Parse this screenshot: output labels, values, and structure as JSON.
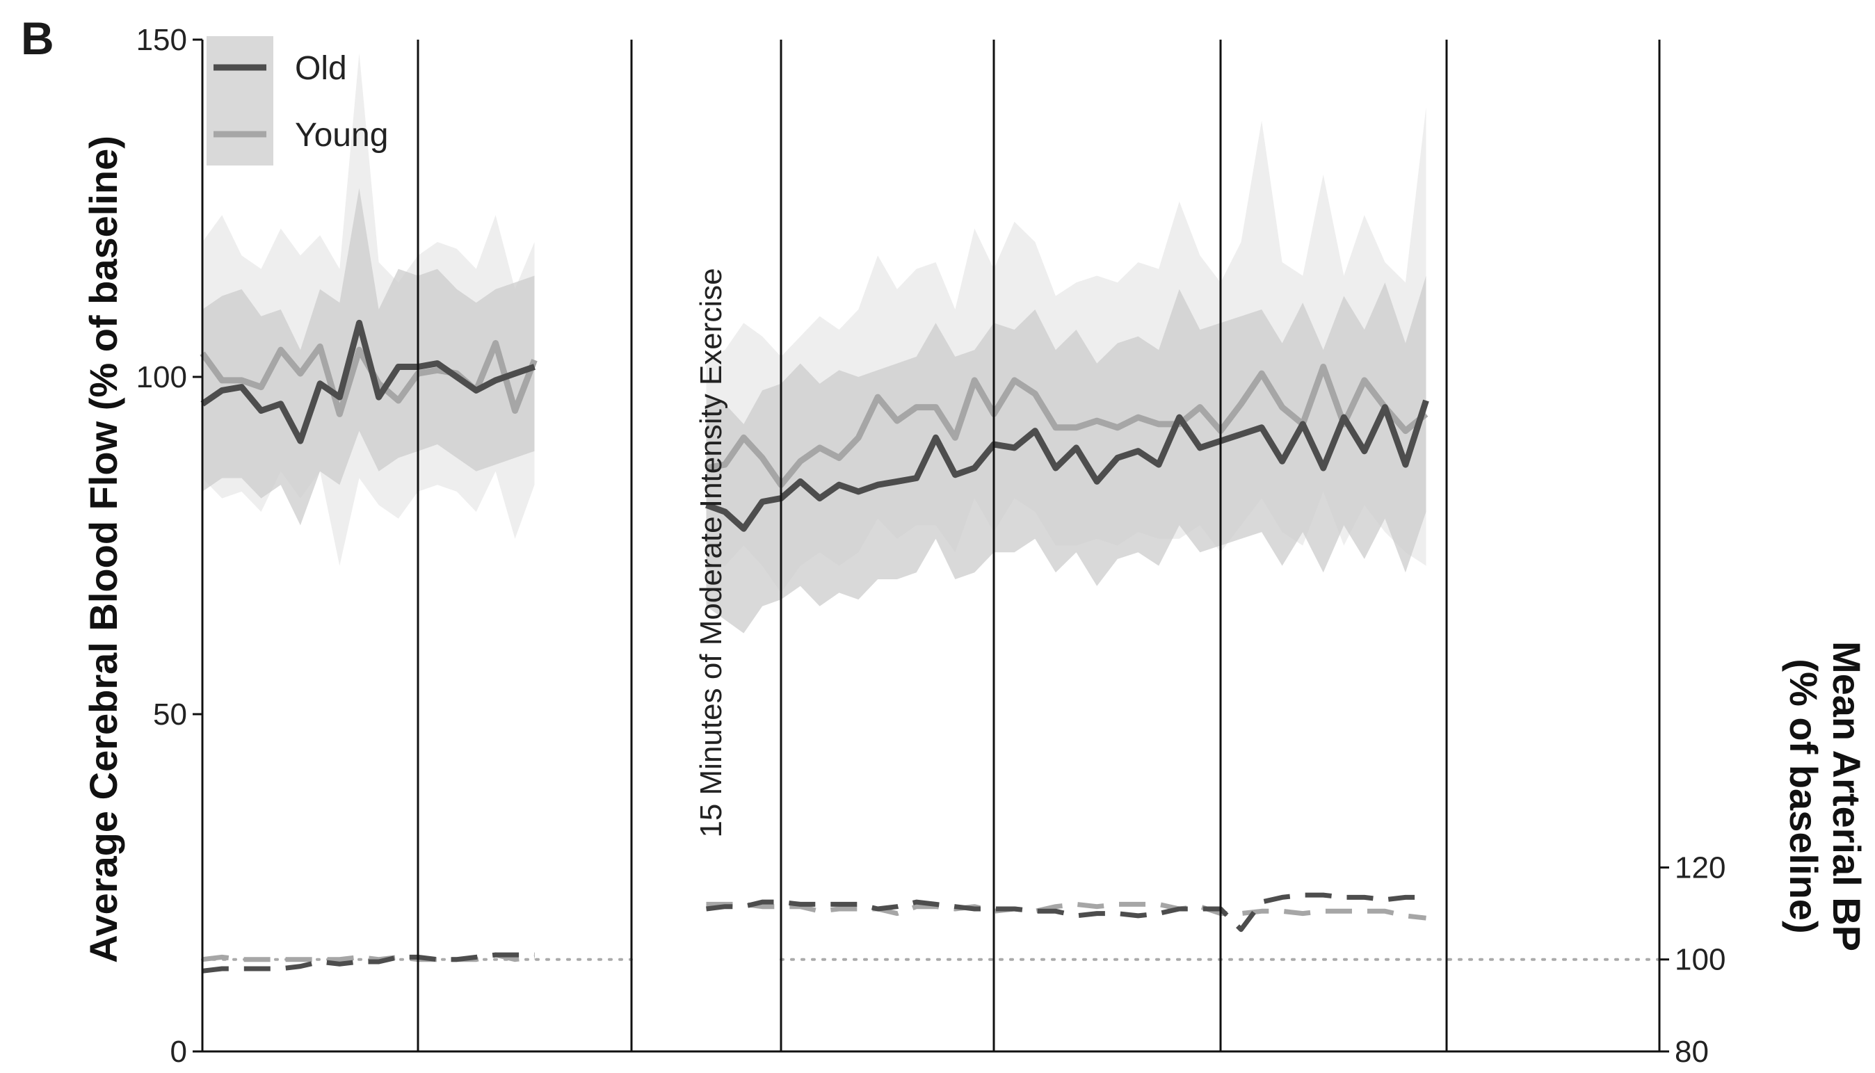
{
  "panel_label": "B",
  "annotation": "15 Minutes of Moderate Intensity Exercise",
  "chart_data": {
    "type": "line",
    "title": "",
    "ylabel": "Average Cerebral Blood Flow (% of baseline)",
    "ylabel_right": [
      "Mean Arterial BP",
      "(% of baseline)"
    ],
    "xlabel": "",
    "ylim": [
      0,
      150
    ],
    "ylim_right": [
      80,
      300
    ],
    "yticks": [
      0,
      50,
      100,
      150
    ],
    "yticks_right": [
      80,
      100,
      120
    ],
    "grid": false,
    "legend_position": "top-left",
    "legend": [
      {
        "name": "Old",
        "color": "#4d4d4d"
      },
      {
        "name": "Young",
        "color": "#a6a6a6"
      }
    ],
    "colors": {
      "old": "#4d4d4d",
      "young": "#a6a6a6",
      "band_old": "#cccccc",
      "band_young": "#e8e8e8",
      "reference_line": "#aaaaaa"
    },
    "x": [
      0,
      1,
      2,
      3,
      4,
      5,
      6,
      7,
      8,
      9,
      10,
      11,
      12,
      13,
      14,
      15,
      16,
      17,
      18,
      19,
      20,
      21,
      22,
      23,
      24,
      25,
      26,
      27,
      28,
      29,
      30,
      31,
      32,
      33,
      34,
      35,
      36,
      37,
      38,
      39,
      40,
      41,
      42,
      43,
      44,
      45,
      46,
      47,
      48,
      49,
      50,
      51,
      52,
      53,
      54,
      55,
      56,
      57,
      58,
      59,
      60,
      61,
      62,
      63,
      64,
      65,
      66,
      67,
      68,
      69,
      70,
      71,
      72,
      73,
      74
    ],
    "segment_boundaries": [
      0,
      11,
      22,
      30,
      41,
      52,
      63,
      74
    ],
    "exercise_gap": [
      22,
      30
    ],
    "series": [
      {
        "name": "Old",
        "axis": "left",
        "values": [
          96,
          98,
          98.5,
          95,
          96,
          90.5,
          99,
          97,
          108,
          97,
          101.5,
          101.5,
          102,
          100,
          98,
          99.5,
          100.5,
          101.5,
          null,
          null,
          null,
          null,
          null,
          null,
          null,
          null,
          81,
          80,
          77.5,
          81.5,
          82,
          84.5,
          82,
          84,
          83,
          84,
          84.5,
          85,
          91,
          85.5,
          86.5,
          90,
          89.5,
          92,
          86.5,
          89.5,
          84.5,
          88,
          89,
          87,
          94,
          89.5,
          90.5,
          91.5,
          92.5,
          87.5,
          93,
          86.5,
          94,
          89,
          95.5,
          87,
          96.5,
          null,
          null,
          null,
          null,
          null,
          null,
          null,
          null,
          null,
          null,
          null,
          null
        ],
        "lower": [
          83,
          85,
          85,
          82,
          84,
          78,
          86,
          84,
          92,
          86,
          88,
          89,
          90,
          88,
          86,
          87,
          88,
          89,
          null,
          null,
          null,
          null,
          null,
          null,
          null,
          null,
          66,
          64,
          62,
          66,
          67,
          69,
          66,
          68,
          67,
          70,
          70,
          71,
          76,
          70,
          71,
          74,
          74,
          76,
          71,
          74,
          69,
          73,
          74,
          72,
          78,
          74,
          75,
          76,
          77,
          72,
          77,
          71,
          78,
          73,
          79,
          71,
          80,
          null,
          null,
          null,
          null,
          null,
          null,
          null,
          null,
          null,
          null,
          null,
          null
        ],
        "upper": [
          110,
          112,
          113,
          109,
          110,
          104,
          113,
          111,
          128,
          110,
          116,
          115,
          116,
          113,
          111,
          113,
          114,
          115,
          null,
          null,
          null,
          null,
          null,
          null,
          null,
          null,
          97,
          96,
          93,
          98,
          99,
          102,
          99,
          101,
          100,
          101,
          102,
          103,
          108,
          103,
          104,
          108,
          107,
          110,
          104,
          107,
          102,
          105,
          106,
          104,
          113,
          107,
          108,
          109,
          110,
          105,
          111,
          104,
          112,
          107,
          114,
          105,
          115,
          null,
          null,
          null,
          null,
          null,
          null,
          null,
          null,
          null,
          null,
          null,
          null
        ]
      },
      {
        "name": "Young",
        "axis": "left",
        "values": [
          103.5,
          99.5,
          99.5,
          98.5,
          104,
          100.5,
          104.5,
          94.5,
          104,
          99,
          96.5,
          100.5,
          101,
          100.5,
          98,
          105,
          95,
          102.5,
          null,
          null,
          null,
          null,
          null,
          null,
          null,
          null,
          86.5,
          87,
          91,
          88,
          84,
          87.5,
          89.5,
          88,
          91,
          97,
          93.5,
          95.5,
          95.5,
          91,
          99.5,
          94.5,
          99.5,
          97.5,
          92.5,
          92.5,
          93.5,
          92.5,
          94,
          93,
          93,
          95.5,
          92,
          96,
          100.5,
          95.5,
          93,
          101.5,
          93,
          99.5,
          95.5,
          92,
          94.5,
          null,
          null,
          null,
          null,
          null,
          null,
          null,
          null,
          null,
          null,
          null,
          null
        ],
        "lower": [
          85,
          82,
          83,
          80,
          86,
          82,
          86,
          72,
          85,
          81,
          79,
          83,
          84,
          83,
          80,
          86,
          76,
          84,
          null,
          null,
          null,
          null,
          null,
          null,
          null,
          null,
          72,
          72,
          75,
          72,
          68,
          72,
          74,
          72,
          74,
          79,
          76,
          78,
          78,
          74,
          82,
          77,
          82,
          80,
          75,
          75,
          76,
          75,
          77,
          76,
          76,
          78,
          74,
          78,
          82,
          77,
          75,
          83,
          75,
          81,
          77,
          74,
          72,
          null,
          null,
          null,
          null,
          null,
          null,
          null,
          null,
          null,
          null,
          null,
          null
        ],
        "upper": [
          120,
          124,
          118,
          116,
          122,
          118,
          121,
          116,
          148,
          117,
          114,
          118,
          120,
          119,
          116,
          124,
          113,
          120,
          null,
          null,
          null,
          null,
          null,
          null,
          null,
          null,
          103,
          104,
          108,
          106,
          103,
          106,
          109,
          107,
          110,
          118,
          113,
          116,
          117,
          110,
          122,
          116,
          123,
          120,
          112,
          114,
          115,
          114,
          117,
          116,
          126,
          118,
          114,
          120,
          138,
          117,
          115,
          130,
          115,
          124,
          117,
          114,
          140,
          null,
          null,
          null,
          null,
          null,
          null,
          null,
          null,
          null,
          null,
          null,
          null
        ]
      },
      {
        "name": "Old",
        "axis": "right",
        "style": "dashed",
        "values": [
          97.5,
          98,
          98,
          98,
          98,
          98.5,
          99.5,
          99,
          99.5,
          99.5,
          100.5,
          100.5,
          100,
          100,
          100.5,
          101,
          101,
          101,
          null,
          null,
          null,
          null,
          null,
          null,
          null,
          null,
          111,
          111.5,
          111.5,
          112.5,
          112.5,
          112,
          112,
          112,
          112,
          111,
          111.5,
          112.5,
          112,
          111.5,
          111,
          111,
          111,
          110.5,
          110.5,
          109.5,
          110,
          110,
          109.5,
          110,
          111,
          111,
          111,
          106.5,
          112.5,
          113.5,
          114,
          114,
          113.5,
          113.5,
          113,
          113.5,
          113.5,
          null,
          null,
          null,
          null,
          null,
          null,
          null,
          null,
          null,
          null,
          null,
          null
        ]
      },
      {
        "name": "Young",
        "axis": "right",
        "style": "dashed",
        "values": [
          100,
          100.5,
          100,
          100,
          100,
          100,
          100,
          100,
          100.5,
          100,
          100.5,
          100,
          100,
          100,
          100,
          101,
          100,
          100.5,
          null,
          null,
          null,
          null,
          null,
          null,
          null,
          null,
          112,
          112,
          112,
          111.5,
          111.5,
          111.5,
          110.5,
          111,
          111,
          111,
          110,
          111.5,
          111.5,
          111,
          111.5,
          110.5,
          111,
          110.5,
          111.5,
          112,
          111.5,
          112,
          112,
          112,
          111,
          111.5,
          110,
          110,
          110.5,
          110.5,
          110,
          110.5,
          110.5,
          110.5,
          110.5,
          109.5,
          109,
          null,
          null,
          null,
          null,
          null,
          null,
          null,
          null,
          null,
          null,
          null,
          null
        ]
      }
    ],
    "reference_line": {
      "axis": "right",
      "value": 100,
      "style": "dotted"
    }
  }
}
